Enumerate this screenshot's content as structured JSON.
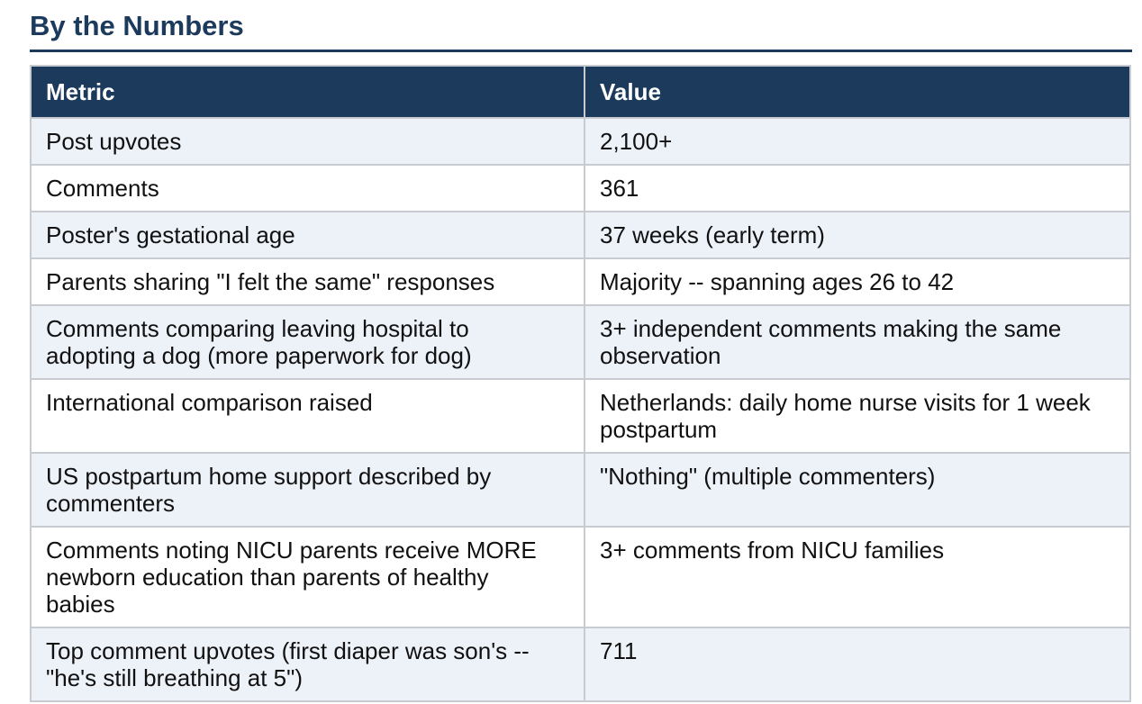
{
  "page": {
    "title": "By the Numbers"
  },
  "colors": {
    "accent": "#1b3a5c",
    "header_bg": "#1b3a5c",
    "row_alt_bg": "#edf1f8",
    "border": "#c8ccd0",
    "header_text": "#ffffff",
    "body_text": "#111111"
  },
  "table": {
    "columns": [
      "Metric",
      "Value"
    ],
    "rows": [
      {
        "metric": "Post upvotes",
        "value": "2,100+"
      },
      {
        "metric": "Comments",
        "value": "361"
      },
      {
        "metric": "Poster's gestational age",
        "value": "37 weeks (early term)"
      },
      {
        "metric": "Parents sharing \"I felt the same\" responses",
        "value": "Majority -- spanning ages 26 to 42"
      },
      {
        "metric": "Comments comparing leaving hospital to adopting a dog (more paperwork for dog)",
        "value": "3+ independent comments making the same observation"
      },
      {
        "metric": "International comparison raised",
        "value": "Netherlands: daily home nurse visits for 1 week postpartum"
      },
      {
        "metric": "US postpartum home support described by commenters",
        "value": "\"Nothing\" (multiple commenters)"
      },
      {
        "metric": "Comments noting NICU parents receive MORE newborn education than parents of healthy babies",
        "value": "3+ comments from NICU families"
      },
      {
        "metric": "Top comment upvotes (first diaper was son's -- \"he's still breathing at 5\")",
        "value": "711"
      }
    ]
  }
}
